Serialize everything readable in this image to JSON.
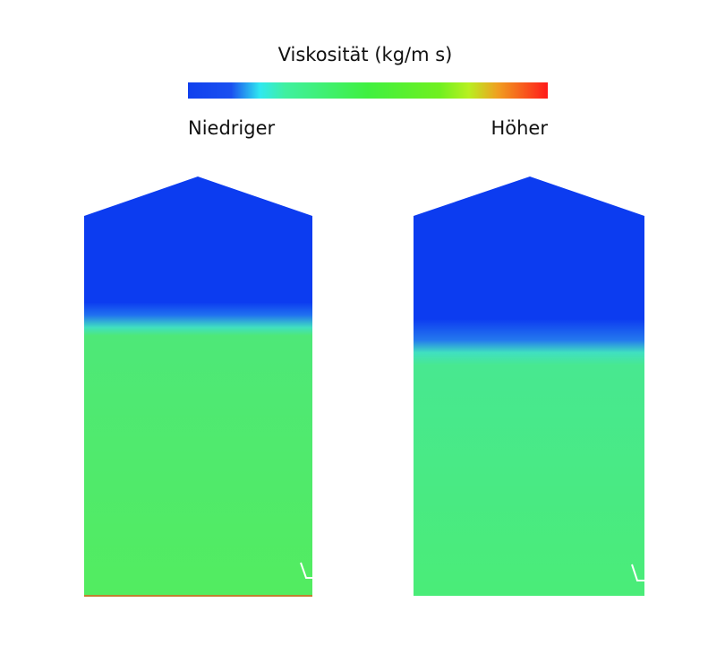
{
  "colorbar": {
    "title": "Viskosität (kg/m s)",
    "low_label": "Niedriger",
    "high_label": "Höher"
  }
}
